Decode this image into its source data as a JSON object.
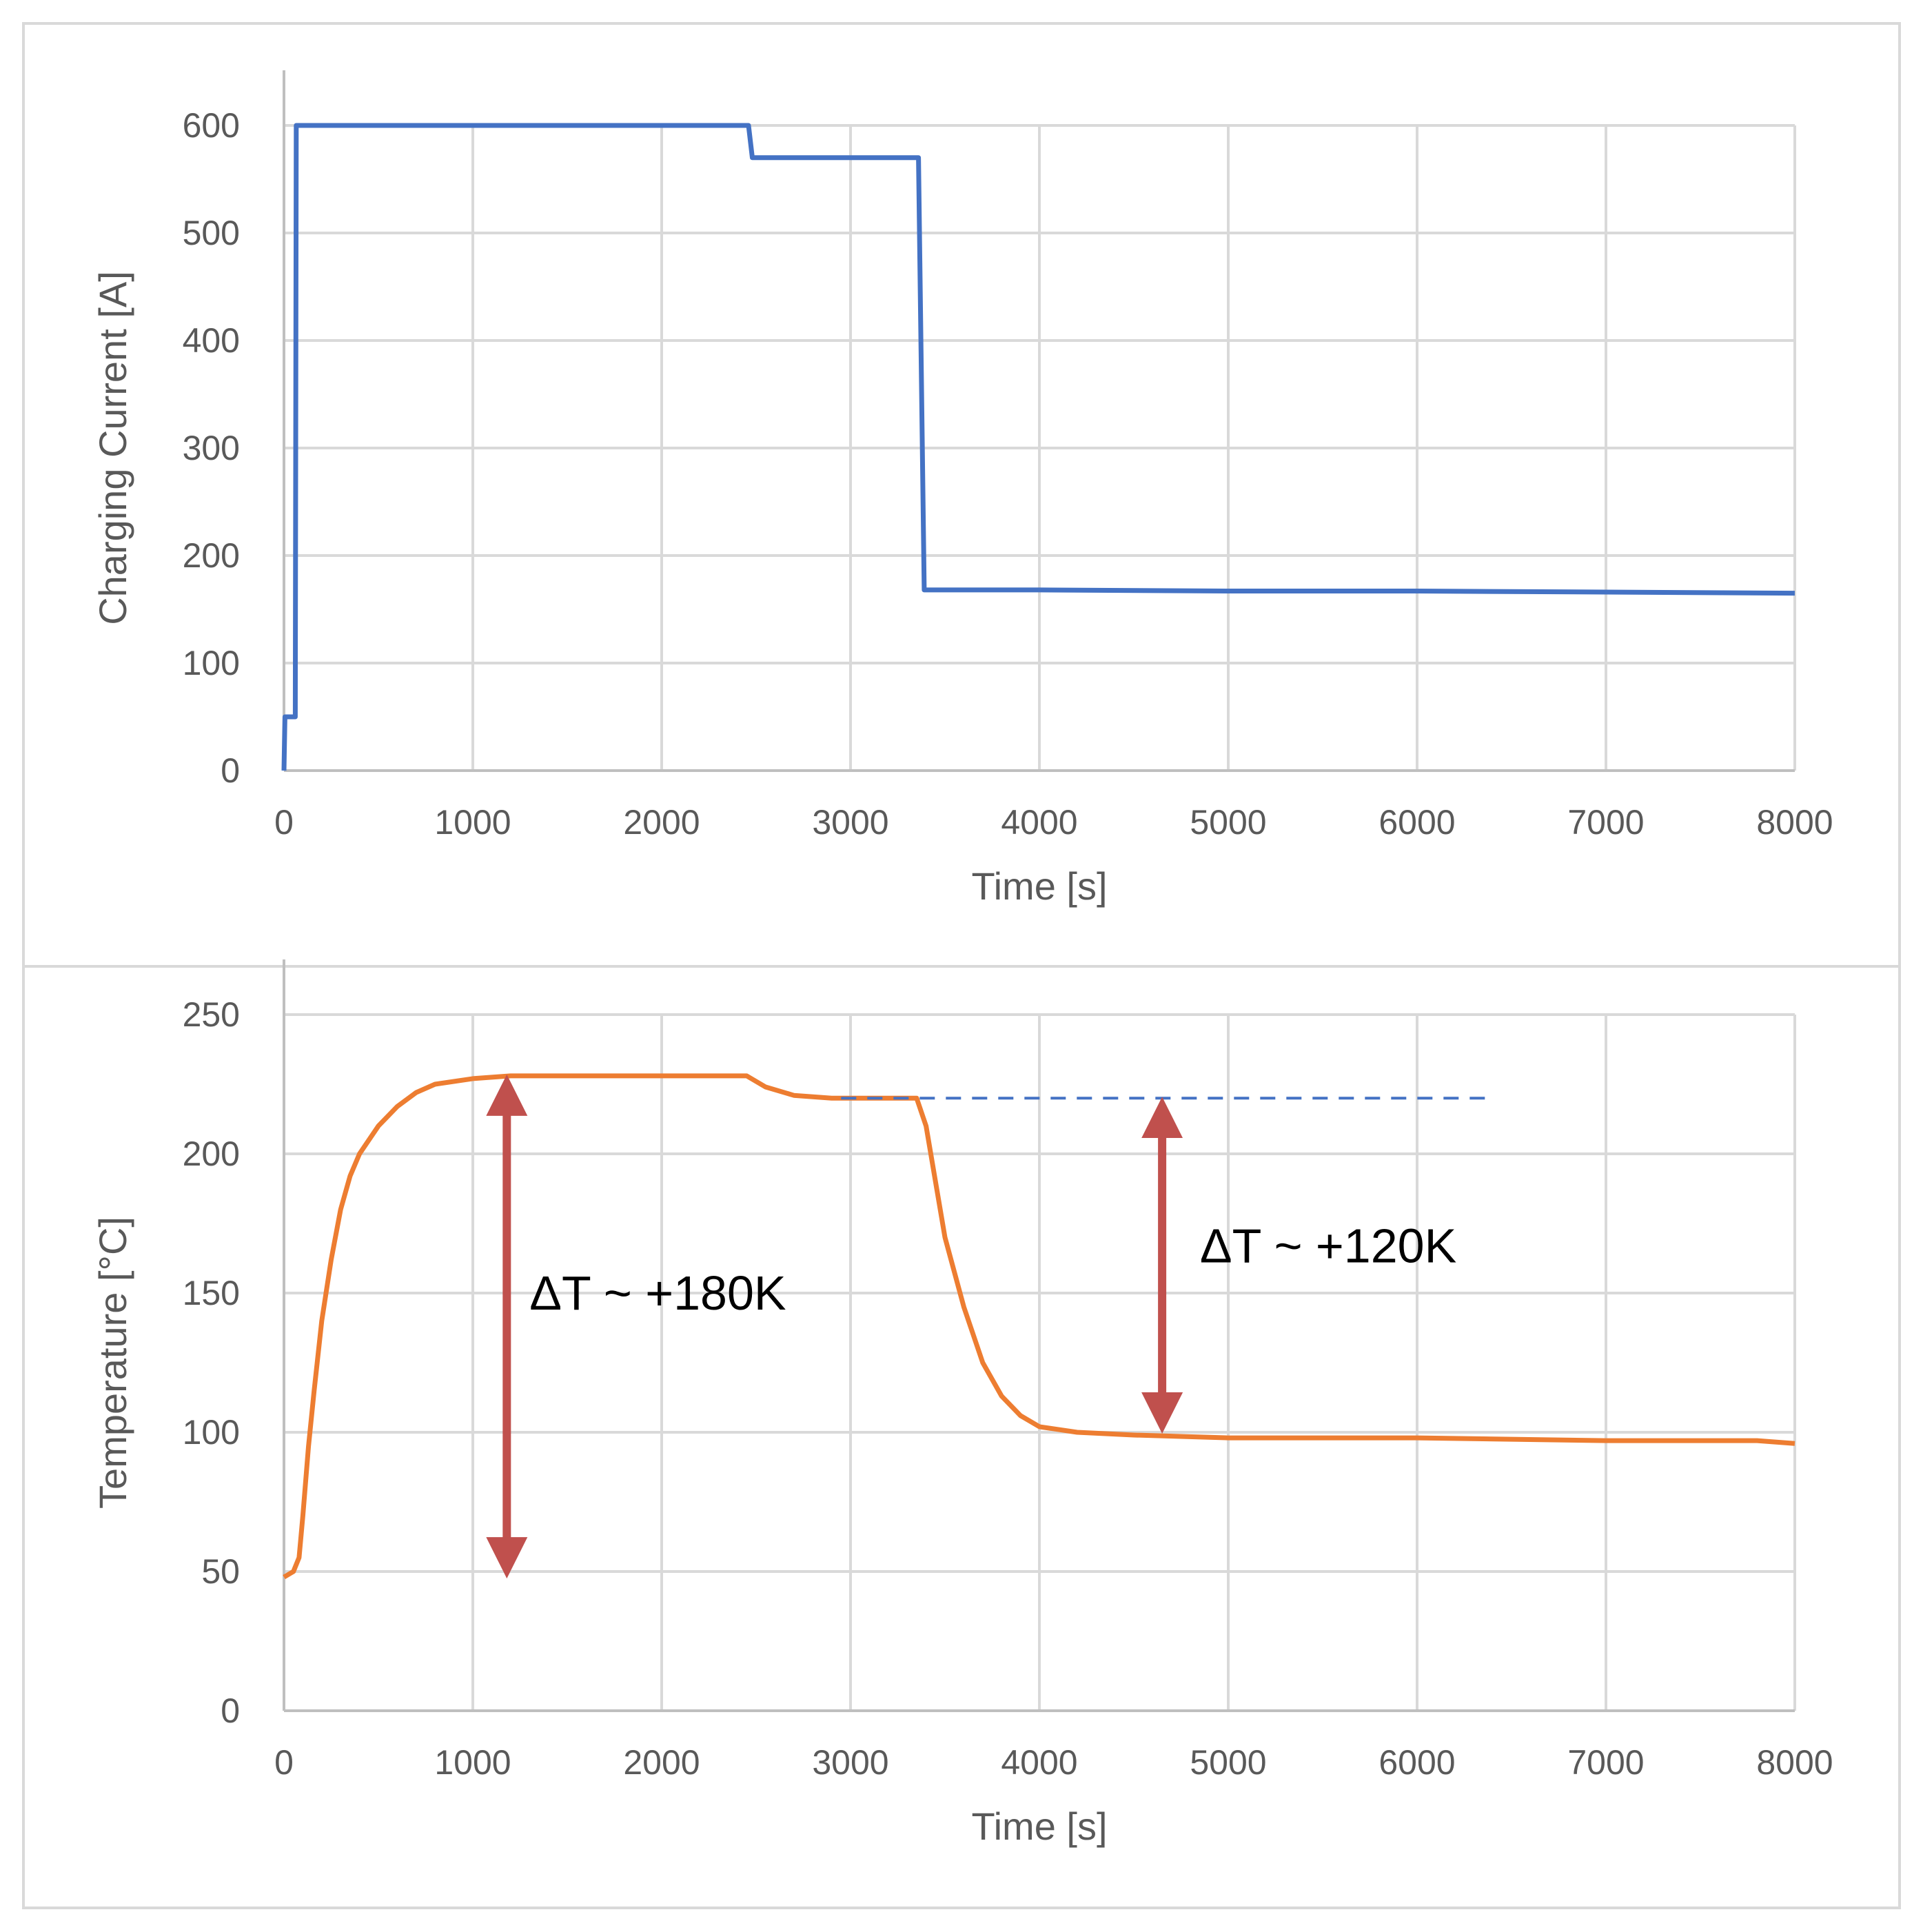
{
  "chart_data": [
    {
      "type": "line",
      "title": "",
      "xlabel": "Time [s]",
      "ylabel": "Charging Current [A]",
      "xlim": [
        0,
        8000
      ],
      "ylim": [
        0,
        600
      ],
      "xticks": [
        0,
        1000,
        2000,
        3000,
        4000,
        5000,
        6000,
        7000,
        8000
      ],
      "yticks": [
        0,
        100,
        200,
        300,
        400,
        500,
        600
      ],
      "grid": true,
      "legend": "none",
      "series": [
        {
          "color": "#4472c4",
          "style": "solid",
          "points": [
            [
              0,
              0
            ],
            [
              5,
              50
            ],
            [
              60,
              50
            ],
            [
              65,
              600
            ],
            [
              2460,
              600
            ],
            [
              2480,
              570
            ],
            [
              3360,
              570
            ],
            [
              3390,
              168
            ],
            [
              4000,
              168
            ],
            [
              5000,
              167
            ],
            [
              6000,
              167
            ],
            [
              7000,
              166
            ],
            [
              8000,
              165
            ]
          ]
        }
      ]
    },
    {
      "type": "line",
      "title": "",
      "xlabel": "Time [s]",
      "ylabel": "Temperature [°C]",
      "xlim": [
        0,
        8000
      ],
      "ylim": [
        0,
        250
      ],
      "xticks": [
        0,
        1000,
        2000,
        3000,
        4000,
        5000,
        6000,
        7000,
        8000
      ],
      "yticks": [
        0,
        50,
        100,
        150,
        200,
        250
      ],
      "grid": true,
      "legend": "none",
      "series": [
        {
          "color": "#ed7d31",
          "style": "solid",
          "points": [
            [
              0,
              48
            ],
            [
              50,
              50
            ],
            [
              80,
              55
            ],
            [
              100,
              70
            ],
            [
              130,
              95
            ],
            [
              160,
              115
            ],
            [
              200,
              140
            ],
            [
              250,
              162
            ],
            [
              300,
              180
            ],
            [
              350,
              192
            ],
            [
              400,
              200
            ],
            [
              500,
              210
            ],
            [
              600,
              217
            ],
            [
              700,
              222
            ],
            [
              800,
              225
            ],
            [
              1000,
              227
            ],
            [
              1200,
              228
            ],
            [
              2000,
              228
            ],
            [
              2450,
              228
            ],
            [
              2550,
              224
            ],
            [
              2700,
              221
            ],
            [
              2900,
              220
            ],
            [
              3350,
              220
            ],
            [
              3400,
              210
            ],
            [
              3450,
              190
            ],
            [
              3500,
              170
            ],
            [
              3600,
              145
            ],
            [
              3700,
              125
            ],
            [
              3800,
              113
            ],
            [
              3900,
              106
            ],
            [
              4000,
              102
            ],
            [
              4200,
              100
            ],
            [
              4500,
              99
            ],
            [
              5000,
              98
            ],
            [
              6000,
              98
            ],
            [
              7000,
              97
            ],
            [
              7800,
              97
            ],
            [
              8000,
              96
            ]
          ]
        },
        {
          "color": "#4472c4",
          "style": "dashed",
          "points": [
            [
              2950,
              220
            ],
            [
              6400,
              220
            ]
          ]
        }
      ],
      "annotations": [
        {
          "text": "ΔT ~ +180K",
          "x": 1300,
          "y": 150,
          "arrow_x": 1180,
          "arrow_from": 48,
          "arrow_to": 228,
          "color": "#c0504d"
        },
        {
          "text": "ΔT ~ +120K",
          "x": 4850,
          "y": 167,
          "arrow_x": 4650,
          "arrow_from": 100,
          "arrow_to": 220,
          "color": "#c0504d"
        }
      ]
    }
  ]
}
